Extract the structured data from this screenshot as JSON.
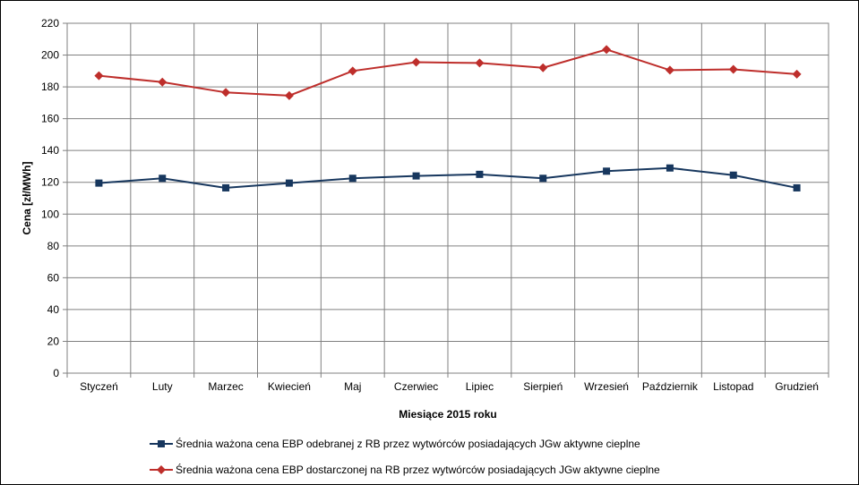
{
  "chart_data": {
    "type": "line",
    "categories": [
      "Styczeń",
      "Luty",
      "Marzec",
      "Kwiecień",
      "Maj",
      "Czerwiec",
      "Lipiec",
      "Sierpień",
      "Wrzesień",
      "Październik",
      "Listopad",
      "Grudzień"
    ],
    "series": [
      {
        "name": "Średnia ważona cena EBP odebranej z RB przez wytwórców posiadających JGw aktywne cieplne",
        "values": [
          119.5,
          122.5,
          116.5,
          119.5,
          122.5,
          124,
          125,
          122.5,
          127,
          129,
          124.5,
          116.5
        ],
        "color": "#17375E",
        "marker": "square"
      },
      {
        "name": "Średnia ważona cena EBP dostarczonej na RB przez wytwórców posiadających JGw aktywne cieplne",
        "values": [
          187,
          183,
          176.5,
          174.5,
          190,
          195.5,
          195,
          192,
          203.5,
          190.5,
          191,
          188
        ],
        "color": "#BE2E2B",
        "marker": "diamond"
      }
    ],
    "xlabel": "Miesiące 2015  roku",
    "ylabel": "Cena [zł/MWh]",
    "ylim": [
      0,
      220
    ],
    "yticks": [
      "0",
      "20",
      "40",
      "60",
      "80",
      "100",
      "120",
      "140",
      "160",
      "180",
      "200",
      "220"
    ],
    "grid": true,
    "legend_position": "bottom"
  }
}
